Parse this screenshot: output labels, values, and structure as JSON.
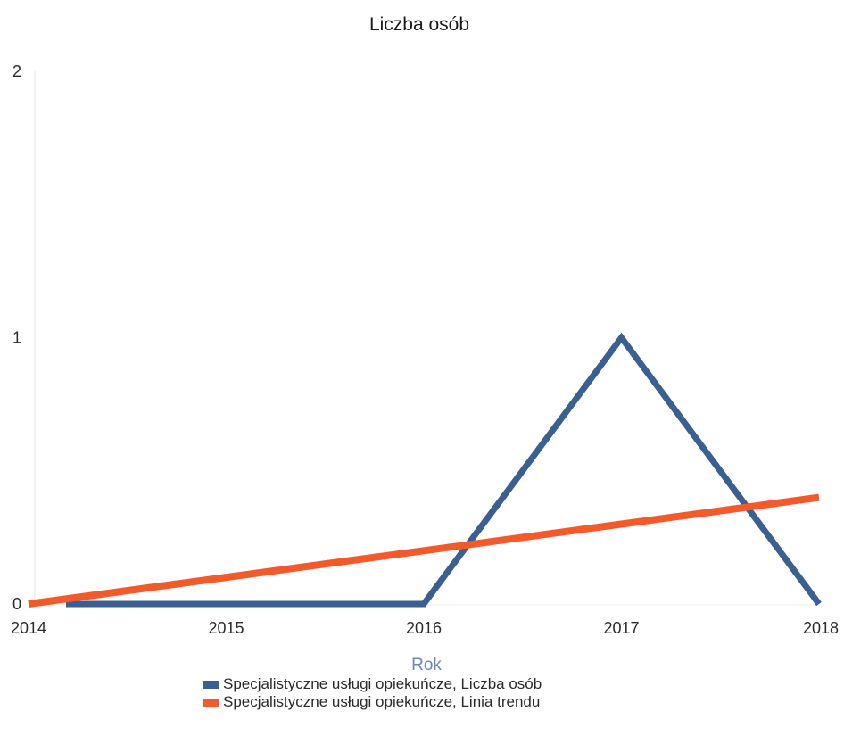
{
  "chart_data": {
    "type": "line",
    "title": "Liczba osób",
    "xlabel": "Rok",
    "ylabel": "",
    "x": [
      2014,
      2015,
      2016,
      2017,
      2018
    ],
    "x_tick_labels": [
      "2014",
      "2015",
      "2016",
      "2017",
      "2018"
    ],
    "xlim": [
      2014,
      2018
    ],
    "ylim": [
      0,
      2
    ],
    "y_ticks": [
      0,
      1,
      2
    ],
    "y_tick_labels": [
      "0",
      "1",
      "2"
    ],
    "grid": false,
    "legend_position": "bottom-center",
    "series": [
      {
        "name": "Specjalistyczne usługi opiekuńcze, Liczba osób",
        "values": [
          0,
          0,
          0,
          1,
          0
        ],
        "color": "#3b5f8e"
      },
      {
        "name": "Specjalistyczne usługi opiekuńcze, Linia trendu",
        "values": [
          0,
          0.1,
          0.2,
          0.3,
          0.4
        ],
        "color": "#f25a2c"
      }
    ],
    "xlabel_color": "#6e86b3"
  }
}
